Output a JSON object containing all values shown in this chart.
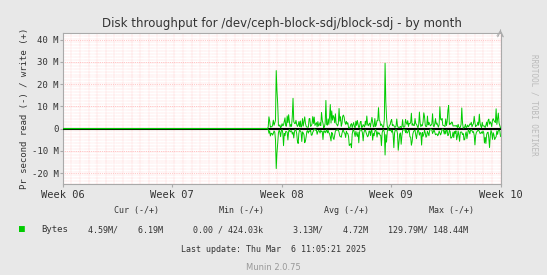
{
  "title": "Disk throughput for /dev/ceph-block-sdj/block-sdj - by month",
  "ylabel": "Pr second read (-) / write (+)",
  "watermark": "RRDTOOL / TOBI OETIKER",
  "munin_version": "Munin 2.0.75",
  "legend_label": "Bytes",
  "legend_color": "#00cc00",
  "cur_neg": "4.59M",
  "cur_pos": "6.19M",
  "min_neg": "0.00",
  "min_pos": "424.03k",
  "avg_neg": "3.13M",
  "avg_pos": "4.72M",
  "max_neg": "129.79M",
  "max_pos": "148.44M",
  "last_update": "Last update: Thu Mar  6 11:05:21 2025",
  "x_ticks": [
    "Week 06",
    "Week 07",
    "Week 08",
    "Week 09",
    "Week 10"
  ],
  "x_tick_positions": [
    0.0,
    0.25,
    0.5,
    0.75,
    1.0
  ],
  "ylim": [
    -25000000,
    43000000
  ],
  "yticks": [
    -20000000,
    -10000000,
    0,
    10000000,
    20000000,
    30000000,
    40000000
  ],
  "ytick_labels": [
    "-20 M",
    "-10 M",
    "0",
    "10 M",
    "20 M",
    "30 M",
    "40 M"
  ],
  "bg_color": "#e8e8e8",
  "plot_bg_color": "#ffffff",
  "grid_color": "#cccccc",
  "major_grid_color": "#ff9999",
  "line_color": "#00cc00",
  "zero_line_color": "#000000",
  "border_color": "#aaaaaa",
  "text_color": "#333333",
  "stats_header": "        Cur (-/+)            Min (-/+)            Avg (-/+)            Max (-/+)",
  "stats_values": "  4.59M/    6.19M        0.00 / 424.03k       3.13M/    4.72M     129.79M/ 148.44M"
}
